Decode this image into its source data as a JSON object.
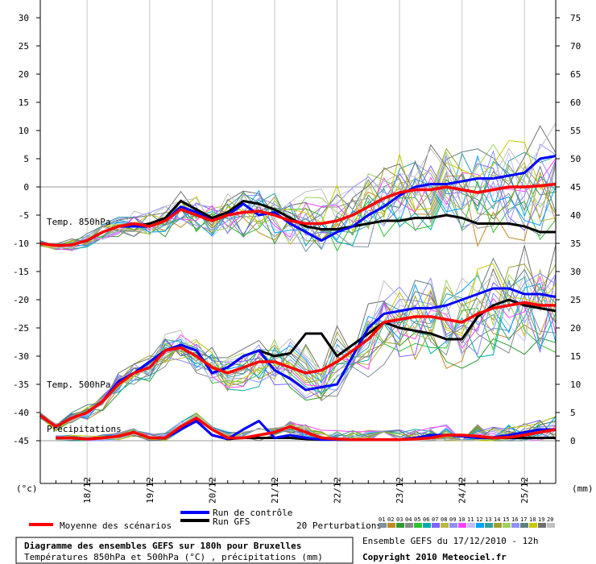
{
  "chart_data": {
    "type": "line",
    "left_axis": {
      "unit": "(°c)",
      "ticks": [
        30,
        25,
        20,
        15,
        10,
        5,
        0,
        -5,
        -10,
        -15,
        -20,
        -25,
        -30,
        -35,
        -40,
        -45
      ]
    },
    "right_axis": {
      "unit": "(mm)",
      "ticks": [
        75,
        70,
        65,
        60,
        55,
        50,
        45,
        40,
        35,
        30,
        25,
        20,
        15,
        10,
        5,
        0
      ]
    },
    "dates": [
      "18/12",
      "19/12",
      "20/12",
      "21/12",
      "22/12",
      "23/12",
      "24/12",
      "25/12"
    ],
    "step_hours": 6,
    "panel_labels": {
      "t850": "Temp. 850hPa",
      "t500": "Temp. 500hPa",
      "precip": "Précipitations"
    },
    "series": [
      {
        "name": "Moyenne des scénarios",
        "color": "#ff0000",
        "role": "mean",
        "t850": [
          -10,
          -10.4,
          -10.3,
          -9.5,
          -8,
          -7,
          -6.5,
          -7,
          -6,
          -4,
          -5,
          -6,
          -5,
          -4.5,
          -4.3,
          -5,
          -6,
          -6.5,
          -6.5,
          -6,
          -5,
          -3.5,
          -2,
          -1,
          -0.5,
          -0.5,
          0,
          -0.5,
          -1,
          -0.5,
          0,
          0,
          0.2,
          0.5
        ],
        "t500": [
          -40.5,
          -42.5,
          -41,
          -40,
          -38,
          -35,
          -33,
          -32,
          -29,
          -28.5,
          -30,
          -32,
          -33,
          -32,
          -31,
          -31,
          -32,
          -33,
          -32.5,
          -31,
          -29,
          -27,
          -24,
          -23.5,
          -23,
          -23,
          -23.5,
          -24,
          -22.5,
          -21.5,
          -21,
          -20.5,
          -21,
          -21
        ],
        "precip": [
          null,
          0.5,
          0.5,
          0.3,
          0.5,
          0.8,
          1.5,
          0.5,
          0.5,
          2.5,
          4,
          2,
          0.5,
          0.5,
          1,
          1.5,
          2.5,
          1.5,
          0.5,
          0.3,
          0.2,
          0.2,
          0.2,
          0.2,
          0.3,
          0.5,
          1,
          1,
          0.8,
          0.5,
          0.6,
          1,
          1.5,
          2
        ]
      },
      {
        "name": "Run de contrôle",
        "color": "#0000ff",
        "role": "control",
        "t850": [
          -10,
          -10.4,
          -10.3,
          -9.5,
          -8,
          -7,
          -7,
          -7,
          -6,
          -3.5,
          -4.5,
          -6,
          -5,
          -3,
          -5,
          -4.5,
          -6.5,
          -8,
          -9.5,
          -8,
          -7,
          -5,
          -3.5,
          -1.5,
          0,
          0.5,
          0.5,
          1,
          1.5,
          1.5,
          2,
          2.5,
          5,
          5.5
        ],
        "t500": [
          -40.5,
          -42.5,
          -41,
          -40,
          -38,
          -34.5,
          -33,
          -31,
          -29,
          -28,
          -29,
          -33,
          -32,
          -30,
          -29,
          -32.5,
          -34,
          -36,
          -35.5,
          -35,
          -30,
          -25,
          -22.5,
          -22,
          -21.5,
          -21.5,
          -21,
          -20,
          -19,
          -18,
          -18,
          -19,
          -19,
          -19.5
        ],
        "precip": [
          null,
          0.5,
          0.5,
          0.3,
          0.5,
          0.8,
          1.5,
          0.5,
          0.5,
          2,
          3.5,
          1,
          0.3,
          2,
          3.5,
          0.5,
          1,
          0.5,
          0.2,
          0.2,
          0.2,
          0.2,
          0.2,
          0.2,
          0.5,
          1,
          1,
          0.8,
          0.5,
          0.6,
          1,
          1.5,
          2,
          2
        ]
      },
      {
        "name": "Run GFS",
        "color": "#000000",
        "role": "gfs",
        "t850": [
          -10,
          -10.4,
          -10.3,
          -9.5,
          -8,
          -7,
          -7,
          -6.5,
          -5.5,
          -2.5,
          -4,
          -5.5,
          -4.5,
          -2.5,
          -3,
          -4,
          -5.5,
          -7,
          -7.5,
          -7.5,
          -7,
          -6.5,
          -6,
          -6,
          -5.5,
          -5.5,
          -5,
          -5.5,
          -6.5,
          -6.5,
          -6.5,
          -7,
          -8,
          -8
        ],
        "t500": [
          -40.5,
          -42.5,
          -41,
          -40,
          -38,
          -34.5,
          -33,
          -31,
          -29,
          -28,
          -29,
          -33,
          -32,
          -30,
          -29,
          -30,
          -29.5,
          -26,
          -26,
          -30,
          -28,
          -26,
          -24,
          -25,
          -25.5,
          -26,
          -27,
          -27,
          -23,
          -21,
          -20,
          -21,
          -21.5,
          -22
        ],
        "precip": [
          null,
          0.5,
          0.5,
          0.3,
          0.5,
          0.8,
          1.5,
          0.5,
          0.5,
          2,
          3.5,
          1,
          0.3,
          0.5,
          0.5,
          0.5,
          0.5,
          0.3,
          0.2,
          0.2,
          0.2,
          0.2,
          0.2,
          0.2,
          0.5,
          0.8,
          1,
          0.8,
          0.5,
          0.5,
          0.5,
          0.5,
          0.5,
          0.5
        ]
      }
    ],
    "perturbations": {
      "count": 20,
      "colors": [
        "#7b8fa0",
        "#c08a22",
        "#2f9a30",
        "#8a8a8a",
        "#30c030",
        "#00aaaa",
        "#8060ff",
        "#b8b840",
        "#8f8fff",
        "#ff40ff",
        "#c0c0ff",
        "#00a0ff",
        "#30a0a0",
        "#a0a030",
        "#a0d060",
        "#9090ff",
        "#608080",
        "#c8c800",
        "#707070",
        "#c0c0c0"
      ]
    },
    "legend": {
      "mean": "Moyenne des scénarios",
      "control": "Run de contrôle",
      "gfs": "Run GFS",
      "perturbations": "20 Perturbations",
      "perturbation_numbers": [
        "01",
        "02",
        "03",
        "04",
        "05",
        "06",
        "07",
        "08",
        "09",
        "10",
        "11",
        "12",
        "13",
        "14",
        "15",
        "16",
        "17",
        "18",
        "19",
        "20"
      ]
    },
    "info": {
      "title": "Diagramme des ensembles GEFS sur 180h pour Bruxelles",
      "subtitle": "Températures 850hPa et 500hPa (°C) , précipitations (mm)",
      "run": "Ensemble GEFS du 17/12/2010 - 12h",
      "copyright": "Copyright 2010 Meteociel.fr"
    }
  }
}
